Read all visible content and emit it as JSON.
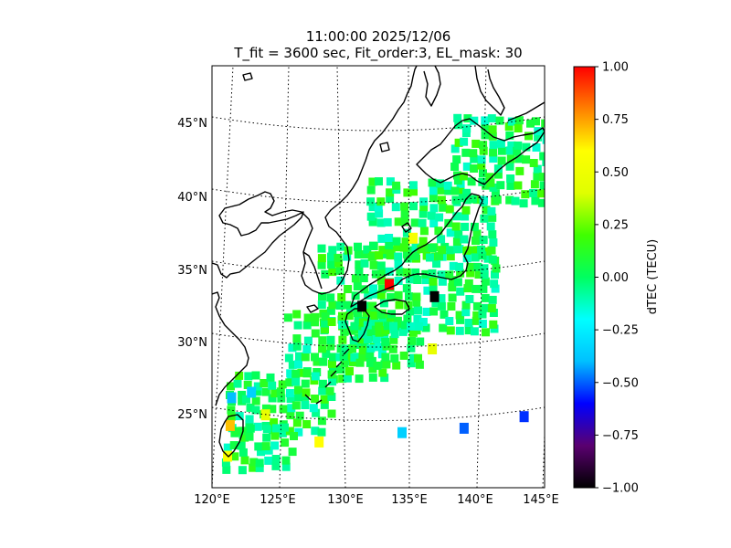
{
  "title": {
    "line1": "11:00:00 2025/12/06",
    "line2": "T_fit = 3600 sec, Fit_order:3, EL_mask: 30"
  },
  "map": {
    "lon_range": [
      120,
      145
    ],
    "lat_range": [
      20,
      49
    ],
    "lon_ticks": [
      "120°E",
      "125°E",
      "130°E",
      "135°E",
      "140°E",
      "145°E"
    ],
    "lat_ticks": [
      "25°N",
      "30°N",
      "35°N",
      "40°N",
      "45°N"
    ],
    "graticule": "dotted",
    "coastline_color": "#000000"
  },
  "colorbar": {
    "label": "dTEC (TECU)",
    "range": [
      -1.0,
      1.0
    ],
    "ticks": [
      "1.00",
      "0.75",
      "0.50",
      "0.25",
      "0.00",
      "−0.25",
      "−0.50",
      "−0.75",
      "−1.00"
    ],
    "colormap": [
      "#000000",
      "#5a0070",
      "#0000ff",
      "#00c0ff",
      "#00ffff",
      "#00ff60",
      "#40ff00",
      "#e0ff00",
      "#ffff00",
      "#ff8000",
      "#ff0000"
    ]
  },
  "dtec_points": [
    {
      "lon": 133.3,
      "lat": 34.0,
      "dtec": 1.0
    },
    {
      "lon": 131.3,
      "lat": 32.5,
      "dtec": -1.0
    },
    {
      "lon": 136.6,
      "lat": 33.2,
      "dtec": -1.0
    },
    {
      "lon": 143.5,
      "lat": 25.2,
      "dtec": -0.55
    },
    {
      "lon": 139.0,
      "lat": 24.2,
      "dtec": -0.5
    },
    {
      "lon": 134.3,
      "lat": 23.8,
      "dtec": -0.35
    },
    {
      "lon": 121.5,
      "lat": 26.5,
      "dtec": -0.4
    },
    {
      "lon": 123.0,
      "lat": 26.8,
      "dtec": -0.35
    },
    {
      "lon": 135.0,
      "lat": 37.2,
      "dtec": 0.55
    },
    {
      "lon": 121.3,
      "lat": 24.6,
      "dtec": 0.7
    },
    {
      "lon": 121.0,
      "lat": 22.5,
      "dtec": 0.55
    },
    {
      "lon": 128.0,
      "lat": 23.2,
      "dtec": 0.6
    },
    {
      "lon": 136.5,
      "lat": 29.6,
      "dtec": 0.45
    },
    {
      "lon": 124.0,
      "lat": 25.2,
      "dtec": 0.45
    }
  ]
}
